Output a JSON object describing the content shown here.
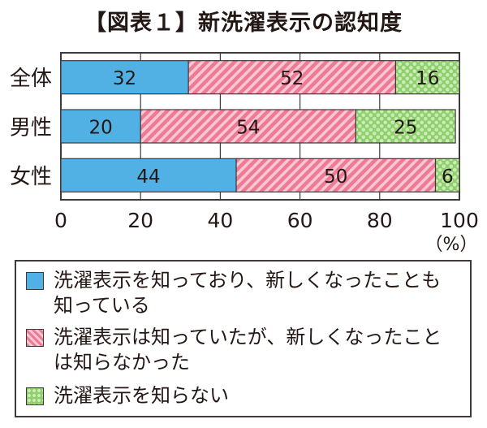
{
  "chart_data": {
    "type": "bar",
    "stacked": true,
    "orientation": "horizontal",
    "title": "【図表１】新洗濯表示の認知度",
    "categories": [
      "全体",
      "男性",
      "女性"
    ],
    "series": [
      {
        "name": "洗濯表示を知っており、新しくなったことも知っている",
        "values": [
          32,
          20,
          44
        ],
        "color": "#52b1e4",
        "pattern": "solid"
      },
      {
        "name": "洗濯表示は知っていたが、新しくなったことは知らなかった",
        "values": [
          52,
          54,
          50
        ],
        "color": "#ee7a95",
        "pattern": "diagonal-stripes"
      },
      {
        "name": "洗濯表示を知らない",
        "values": [
          16,
          25,
          6
        ],
        "color": "#8fcf6e",
        "pattern": "checker"
      }
    ],
    "xlim": [
      0,
      100
    ],
    "xticks": [
      "0",
      "20",
      "40",
      "60",
      "80",
      "100"
    ],
    "xunit": "（%）",
    "grid": true,
    "legend": "bottom"
  }
}
